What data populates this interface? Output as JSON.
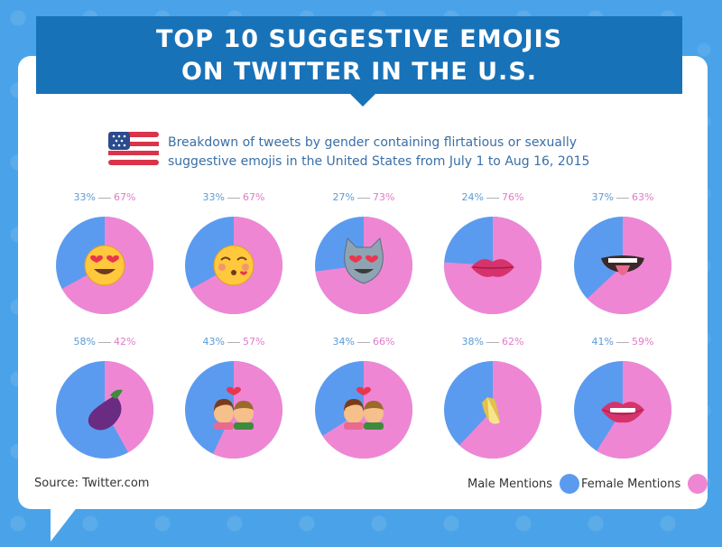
{
  "header": {
    "title_line1": "TOP 10 SUGGESTIVE EMOJIS",
    "title_line2": "ON TWITTER IN THE U.S."
  },
  "subtitle": {
    "line1": "Breakdown of tweets by gender containing flirtatious or sexually",
    "line2": "suggestive emojis in the United States from July 1 to Aug 16, 2015"
  },
  "colors": {
    "male": "#5b9bef",
    "female": "#ef86d4",
    "ribbon": "#1872b8",
    "background": "#4aa3e8"
  },
  "footer": {
    "source": "Source: Twitter.com",
    "legend_male": "Male Mentions",
    "legend_female": "Female Mentions"
  },
  "chart_data": {
    "type": "pie",
    "series_names": [
      "Male Mentions",
      "Female Mentions"
    ],
    "charts": [
      {
        "emoji": "heart-eyes-face",
        "male_pct": 33,
        "female_pct": 67,
        "male_label": "33%",
        "female_label": "67%"
      },
      {
        "emoji": "kissing-blushing-face",
        "male_pct": 33,
        "female_pct": 67,
        "male_label": "33%",
        "female_label": "67%"
      },
      {
        "emoji": "heart-eyes-cat",
        "male_pct": 27,
        "female_pct": 73,
        "male_label": "27%",
        "female_label": "73%"
      },
      {
        "emoji": "kiss-lips",
        "male_pct": 24,
        "female_pct": 76,
        "male_label": "24%",
        "female_label": "76%"
      },
      {
        "emoji": "tongue-out-mouth",
        "male_pct": 37,
        "female_pct": 63,
        "male_label": "37%",
        "female_label": "63%"
      },
      {
        "emoji": "eggplant",
        "male_pct": 58,
        "female_pct": 42,
        "male_label": "58%",
        "female_label": "42%"
      },
      {
        "emoji": "kissing-couple",
        "male_pct": 43,
        "female_pct": 57,
        "male_label": "43%",
        "female_label": "57%"
      },
      {
        "emoji": "couple-with-heart",
        "male_pct": 34,
        "female_pct": 66,
        "male_label": "34%",
        "female_label": "66%"
      },
      {
        "emoji": "banana",
        "male_pct": 38,
        "female_pct": 62,
        "male_label": "38%",
        "female_label": "62%"
      },
      {
        "emoji": "lips",
        "male_pct": 41,
        "female_pct": 59,
        "male_label": "41%",
        "female_label": "59%"
      }
    ]
  }
}
